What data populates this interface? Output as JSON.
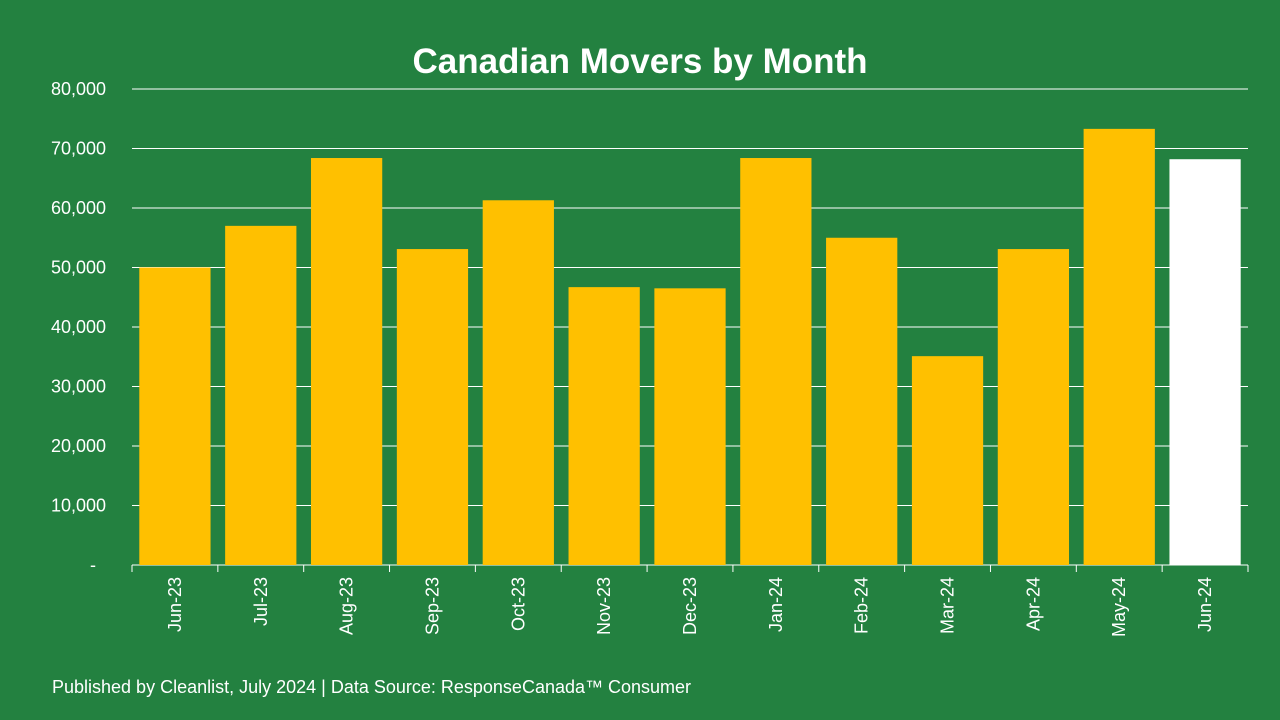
{
  "chart_data": {
    "type": "bar",
    "title": "Canadian Movers by Month",
    "categories": [
      "Jun-23",
      "Jul-23",
      "Aug-23",
      "Sep-23",
      "Oct-23",
      "Nov-23",
      "Dec-23",
      "Jan-24",
      "Feb-24",
      "Mar-24",
      "Apr-24",
      "May-24",
      "Jun-24"
    ],
    "values": [
      50000,
      57000,
      68400,
      53100,
      61300,
      46700,
      46500,
      68400,
      55000,
      35100,
      53100,
      73300,
      68200
    ],
    "ylim": [
      0,
      80000
    ],
    "yticks": [
      "-",
      "10,000",
      "20,000",
      "30,000",
      "40,000",
      "50,000",
      "60,000",
      "70,000",
      "80,000"
    ],
    "xlabel": "",
    "ylabel": "",
    "grid": true,
    "colors": {
      "bar": "#FFC000",
      "highlight_bar": "#FFFFFF",
      "background": "#238140",
      "grid": "#FFFFFF"
    },
    "highlight_index": 12
  },
  "footer": "Published by Cleanlist, July 2024 | Data Source: ResponseCanada™ Consumer"
}
